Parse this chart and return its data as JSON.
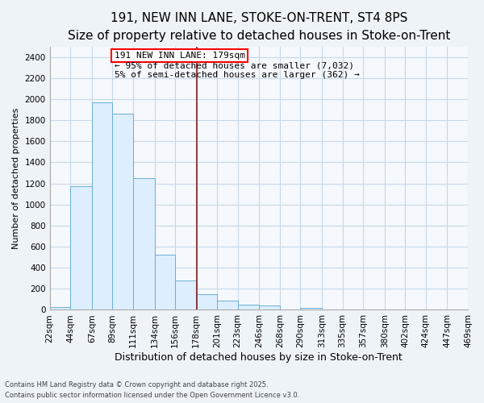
{
  "title": "191, NEW INN LANE, STOKE-ON-TRENT, ST4 8PS",
  "subtitle": "Size of property relative to detached houses in Stoke-on-Trent",
  "xlabel": "Distribution of detached houses by size in Stoke-on-Trent",
  "ylabel": "Number of detached properties",
  "footnote1": "Contains HM Land Registry data © Crown copyright and database right 2025.",
  "footnote2": "Contains public sector information licensed under the Open Government Licence v3.0.",
  "annotation_line1": "191 NEW INN LANE: 179sqm",
  "annotation_line2": "← 95% of detached houses are smaller (7,032)",
  "annotation_line3": "5% of semi-detached houses are larger (362) →",
  "property_size": 179,
  "bar_edges": [
    22,
    44,
    67,
    89,
    111,
    134,
    156,
    178,
    201,
    223,
    246,
    268,
    290,
    313,
    335,
    357,
    380,
    402,
    424,
    447,
    469
  ],
  "bar_heights": [
    30,
    1170,
    1970,
    1860,
    1250,
    520,
    280,
    150,
    85,
    50,
    40,
    0,
    15,
    0,
    0,
    0,
    0,
    0,
    5,
    0
  ],
  "bar_color": "#ddeeff",
  "bar_edgecolor": "#6baed6",
  "vline_color": "#8b1a1a",
  "ylim": [
    0,
    2500
  ],
  "yticks": [
    0,
    200,
    400,
    600,
    800,
    1000,
    1200,
    1400,
    1600,
    1800,
    2000,
    2200,
    2400
  ],
  "title_fontsize": 11,
  "subtitle_fontsize": 9,
  "xlabel_fontsize": 9,
  "ylabel_fontsize": 8,
  "tick_fontsize": 7.5,
  "annotation_fontsize": 8,
  "bg_color": "#eef3f8",
  "grid_color": "#c8d8e8",
  "plot_bg": "#f5f8fc"
}
